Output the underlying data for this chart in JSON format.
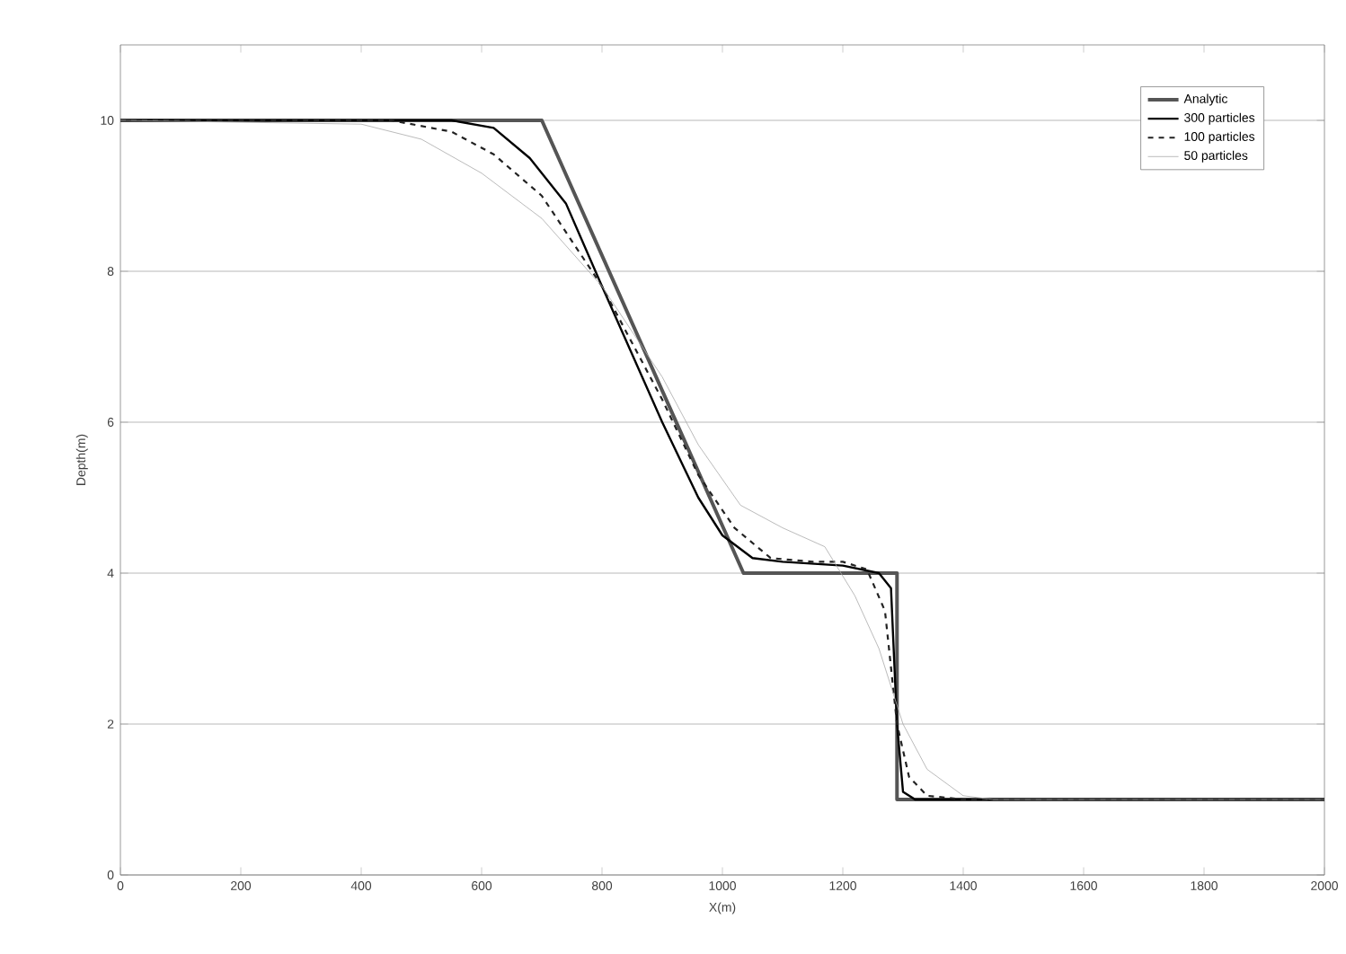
{
  "chart_data": {
    "type": "line",
    "xlabel": "X(m)",
    "ylabel": "Depth(m)",
    "xlim": [
      0,
      2000
    ],
    "ylim": [
      0,
      11
    ],
    "xticks": [
      0,
      200,
      400,
      600,
      800,
      1000,
      1200,
      1400,
      1600,
      1800,
      2000
    ],
    "yticks": [
      0,
      2,
      4,
      6,
      8,
      10
    ],
    "grid": "y",
    "legend": "top right",
    "series": [
      {
        "name": "Analytic",
        "color": "#555555",
        "line_style": "solid",
        "x": [
          0,
          700,
          1035,
          1290,
          1290,
          2000
        ],
        "values": [
          10,
          10,
          4,
          4,
          1,
          1
        ]
      },
      {
        "name": "300 particles",
        "color": "#000000",
        "line_style": "solid",
        "x": [
          0,
          550,
          620,
          680,
          740,
          800,
          900,
          960,
          1000,
          1050,
          1100,
          1200,
          1260,
          1280,
          1290,
          1300,
          1320,
          2000
        ],
        "values": [
          10,
          10,
          9.9,
          9.5,
          8.9,
          7.8,
          6.0,
          5.0,
          4.5,
          4.2,
          4.15,
          4.1,
          4.0,
          3.8,
          2.0,
          1.1,
          1.0,
          1
        ]
      },
      {
        "name": "100 particles",
        "color": "#222222",
        "line_style": "dashed",
        "x": [
          0,
          450,
          550,
          620,
          700,
          800,
          900,
          960,
          1020,
          1080,
          1150,
          1200,
          1240,
          1270,
          1290,
          1310,
          1340,
          1400,
          2000
        ],
        "values": [
          10,
          10,
          9.85,
          9.55,
          9.0,
          7.8,
          6.3,
          5.3,
          4.6,
          4.2,
          4.15,
          4.15,
          4.05,
          3.5,
          2.0,
          1.3,
          1.05,
          1.0,
          1
        ]
      },
      {
        "name": "50 particles",
        "color": "#aaaaaa",
        "line_style": "solid",
        "x": [
          0,
          400,
          500,
          600,
          700,
          800,
          900,
          960,
          1030,
          1100,
          1170,
          1220,
          1260,
          1300,
          1340,
          1400,
          1450,
          2000
        ],
        "values": [
          10,
          9.95,
          9.75,
          9.3,
          8.7,
          7.8,
          6.6,
          5.7,
          4.9,
          4.6,
          4.35,
          3.7,
          3.0,
          2.0,
          1.4,
          1.05,
          1.0,
          1
        ]
      }
    ]
  }
}
